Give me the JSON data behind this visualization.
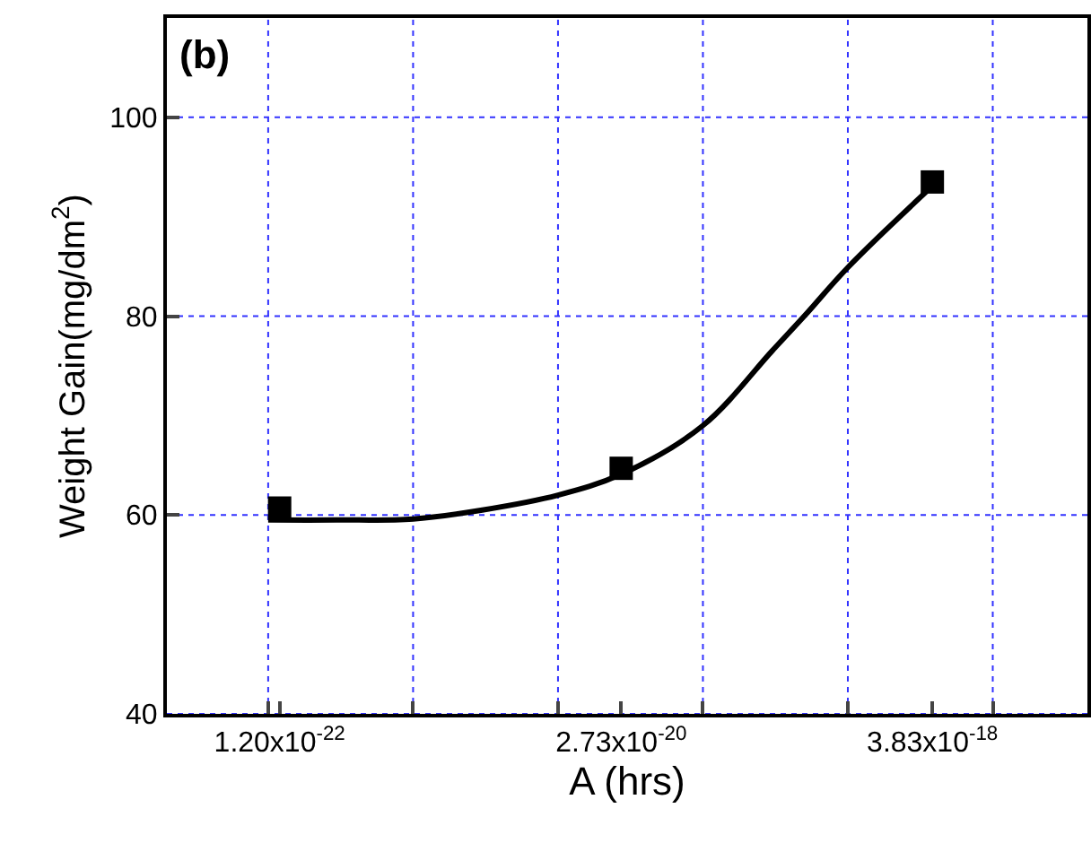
{
  "chart_data": {
    "type": "scatter",
    "xlabel": "A (hrs)",
    "ylabel": "Weight Gain(mg/dm$^{2}$)",
    "annotations": [
      "(b)"
    ],
    "log": "x",
    "grid": true,
    "marker": "square",
    "xlim": [
      2e-23,
      4.5e-17
    ],
    "ylim": [
      40,
      110
    ],
    "xticks": [
      {
        "value": 1e-22,
        "label": null
      },
      {
        "value": 1e-21,
        "label": null
      },
      {
        "value": 1e-20,
        "label": null
      },
      {
        "value": 1e-19,
        "label": null
      },
      {
        "value": 1e-18,
        "label": null
      },
      {
        "value": 1e-17,
        "label": null
      },
      {
        "value": 1.2e-22,
        "label": "1.20x10$^{-22}$"
      },
      {
        "value": 2.73e-20,
        "label": "2.73x10$^{-20}$"
      },
      {
        "value": 3.83e-18,
        "label": "3.83x10$^{-18}$"
      }
    ],
    "yticks": [
      40,
      60,
      80,
      100
    ],
    "series": [
      {
        "color": "#000000",
        "x": [
          1.2e-22,
          2.73e-20,
          3.83e-18
        ],
        "values": [
          60.7,
          64.7,
          93.5
        ]
      },
      {
        "type": "line",
        "color": "#000000",
        "marker": "none",
        "line_style": "solid",
        "x": [
          1e-22,
          3e-22,
          1e-21,
          3e-21,
          1e-20,
          2.73e-20,
          1e-19,
          3e-19,
          5e-19,
          1e-18,
          3.83e-18
        ],
        "values": [
          59.5,
          59.5,
          59.6,
          60.5,
          62,
          64.1,
          69,
          76.5,
          80,
          84.9,
          93.1
        ]
      }
    ]
  }
}
